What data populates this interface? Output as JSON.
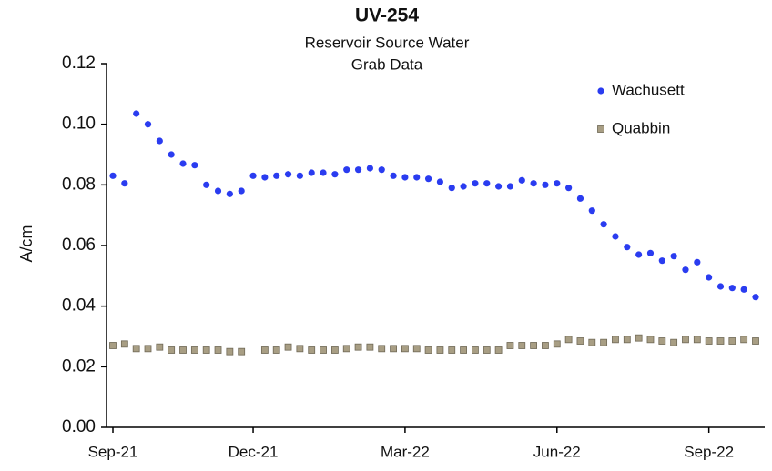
{
  "chart_data": {
    "type": "scatter",
    "title": "UV-254",
    "subtitle": [
      "Reservoir Source Water",
      "Grab Data"
    ],
    "y_label": "A/cm",
    "categories": [
      "Sep-21",
      null,
      null,
      null,
      null,
      null,
      null,
      null,
      null,
      null,
      null,
      null,
      "Dec-21",
      null,
      null,
      null,
      null,
      null,
      null,
      null,
      null,
      null,
      null,
      null,
      null,
      "Mar-22",
      null,
      null,
      null,
      null,
      null,
      null,
      null,
      null,
      null,
      null,
      null,
      null,
      "Jun-22",
      null,
      null,
      null,
      null,
      null,
      null,
      null,
      null,
      null,
      null,
      null,
      null,
      "Sep-22",
      null,
      null,
      null,
      null
    ],
    "series": [
      {
        "name": "Wachusett",
        "color": "#2a3cf0",
        "marker": "circle",
        "values": [
          0.083,
          0.0805,
          0.1035,
          0.1,
          0.0945,
          0.09,
          0.087,
          0.0865,
          0.08,
          0.078,
          0.077,
          0.078,
          0.083,
          0.0825,
          0.083,
          0.0835,
          0.083,
          0.084,
          0.084,
          0.0835,
          0.085,
          0.085,
          0.0855,
          0.085,
          0.083,
          0.0825,
          0.0825,
          0.082,
          0.081,
          0.079,
          0.0795,
          0.0805,
          0.0805,
          0.0795,
          0.0795,
          0.0815,
          0.0805,
          0.08,
          0.0805,
          0.079,
          0.0755,
          0.0715,
          0.067,
          0.063,
          0.0595,
          0.057,
          0.0575,
          0.055,
          0.0565,
          0.052,
          0.0545,
          0.0495,
          0.0465,
          0.046,
          0.0455,
          0.043
        ]
      },
      {
        "name": "Quabbin",
        "color": "#a89e84",
        "marker": "square",
        "values": [
          0.027,
          0.0275,
          0.026,
          0.026,
          0.0265,
          0.0255,
          0.0255,
          0.0255,
          0.0255,
          0.0255,
          0.025,
          0.025,
          null,
          0.0255,
          0.0255,
          0.0265,
          0.026,
          0.0255,
          0.0255,
          0.0255,
          0.026,
          0.0265,
          0.0265,
          0.026,
          0.026,
          0.026,
          0.026,
          0.0255,
          0.0255,
          0.0255,
          0.0255,
          0.0255,
          0.0255,
          0.0255,
          0.027,
          0.027,
          0.027,
          0.027,
          0.0275,
          0.029,
          0.0285,
          0.028,
          0.028,
          0.029,
          0.029,
          0.0295,
          0.029,
          0.0285,
          0.028,
          0.029,
          0.029,
          0.0285,
          0.0285,
          0.0285,
          0.029,
          0.0285
        ]
      }
    ],
    "ylim": [
      0,
      0.12
    ],
    "yticks": [
      {
        "value": 0,
        "label": "0.00"
      },
      {
        "value": 0.02,
        "label": "0.02"
      },
      {
        "value": 0.04,
        "label": "0.04"
      },
      {
        "value": 0.06,
        "label": "0.06"
      },
      {
        "value": 0.08,
        "label": "0.08"
      },
      {
        "value": 0.1,
        "label": "0.10"
      },
      {
        "value": 0.12,
        "label": "0.12"
      }
    ],
    "grid": false,
    "legend": "top-right"
  }
}
